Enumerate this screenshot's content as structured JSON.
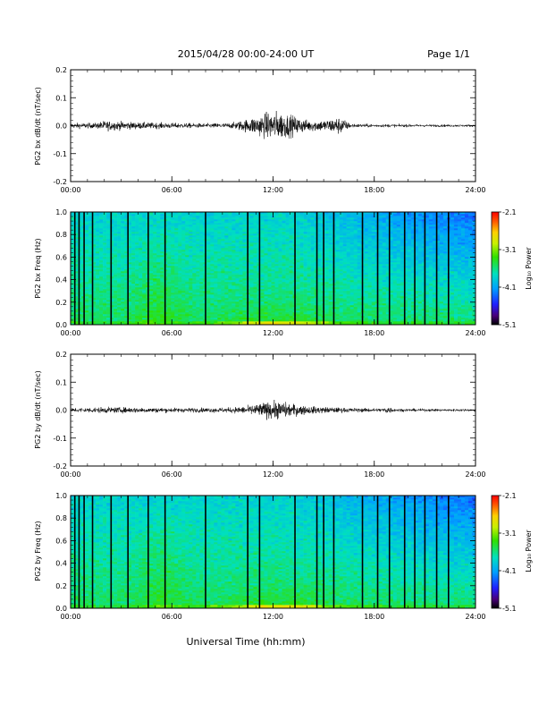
{
  "header": {
    "title": "2015/04/28  00:00-24:00 UT",
    "page": "Page 1/1"
  },
  "footer": {
    "xlabel": "Universal Time (hh:mm)"
  },
  "chart_data": [
    {
      "type": "line",
      "id": "bx-waveform",
      "ylabel": "PG2 bx dB/dt (nT/sec)",
      "xlim": [
        0,
        24
      ],
      "ylim": [
        -0.2,
        0.2
      ],
      "xticks": [
        "00:00",
        "06:00",
        "12:00",
        "18:00",
        "24:00"
      ],
      "yticks": [
        "-0.2",
        "-0.1",
        "0.0",
        "0.1",
        "0.2"
      ],
      "envelope": {
        "hours": [
          0,
          1.5,
          2,
          4,
          6,
          8,
          9.5,
          10.5,
          11.5,
          12,
          12.5,
          13,
          14,
          15,
          16,
          16.5,
          17,
          20,
          24
        ],
        "amplitude": [
          0.012,
          0.012,
          0.022,
          0.015,
          0.012,
          0.01,
          0.012,
          0.03,
          0.055,
          0.065,
          0.06,
          0.05,
          0.025,
          0.025,
          0.04,
          0.012,
          0.008,
          0.006,
          0.005
        ]
      }
    },
    {
      "type": "heatmap",
      "id": "bx-spectrogram",
      "ylabel": "PG2 bx Freq (Hz)",
      "xlim": [
        0,
        24
      ],
      "ylim": [
        0,
        1.0
      ],
      "xticks": [
        "00:00",
        "06:00",
        "12:00",
        "18:00",
        "24:00"
      ],
      "yticks": [
        "0.0",
        "0.2",
        "0.4",
        "0.6",
        "0.8",
        "1.0"
      ],
      "colorbar": {
        "label": "Log₁₀ Power",
        "ticks": [
          "-2.1",
          "-3.1",
          "-4.1",
          "-5.1"
        ],
        "range": [
          -5.1,
          -2.1
        ]
      },
      "gap_hours": [
        0.25,
        0.5,
        0.8,
        1.3,
        2.4,
        3.4,
        4.6,
        5.6,
        8.0,
        10.5,
        11.2,
        13.3,
        14.6,
        15.0,
        15.6,
        17.3,
        18.2,
        18.9,
        19.8,
        20.4,
        21.0,
        21.7,
        22.4
      ]
    },
    {
      "type": "line",
      "id": "by-waveform",
      "ylabel": "PG2 by dB/dt (nT/sec)",
      "xlim": [
        0,
        24
      ],
      "ylim": [
        -0.2,
        0.2
      ],
      "xticks": [
        "00:00",
        "06:00",
        "12:00",
        "18:00",
        "24:00"
      ],
      "yticks": [
        "-0.2",
        "-0.1",
        "0.0",
        "0.1",
        "0.2"
      ],
      "envelope": {
        "hours": [
          0,
          2,
          4,
          6,
          8,
          9.5,
          10.5,
          11.5,
          12.3,
          13,
          14,
          15,
          16.5,
          18.5,
          18.8,
          19.2,
          21,
          24
        ],
        "amplitude": [
          0.01,
          0.013,
          0.012,
          0.01,
          0.01,
          0.012,
          0.018,
          0.035,
          0.04,
          0.03,
          0.018,
          0.014,
          0.01,
          0.008,
          0.018,
          0.007,
          0.006,
          0.006
        ]
      }
    },
    {
      "type": "heatmap",
      "id": "by-spectrogram",
      "ylabel": "PG2 by Freq (Hz)",
      "xlim": [
        0,
        24
      ],
      "ylim": [
        0,
        1.0
      ],
      "xticks": [
        "00:00",
        "06:00",
        "12:00",
        "18:00",
        "24:00"
      ],
      "yticks": [
        "0.0",
        "0.2",
        "0.4",
        "0.6",
        "0.8",
        "1.0"
      ],
      "colorbar": {
        "label": "Log₁₀ Power",
        "ticks": [
          "-2.1",
          "-3.1",
          "-4.1",
          "-5.1"
        ],
        "range": [
          -5.1,
          -2.1
        ]
      },
      "gap_hours": [
        0.25,
        0.5,
        0.8,
        1.3,
        2.4,
        3.4,
        4.6,
        5.6,
        8.0,
        10.5,
        11.2,
        13.3,
        14.6,
        15.0,
        15.6,
        17.3,
        18.2,
        18.9,
        19.8,
        20.4,
        21.0,
        21.7,
        22.4
      ]
    }
  ]
}
